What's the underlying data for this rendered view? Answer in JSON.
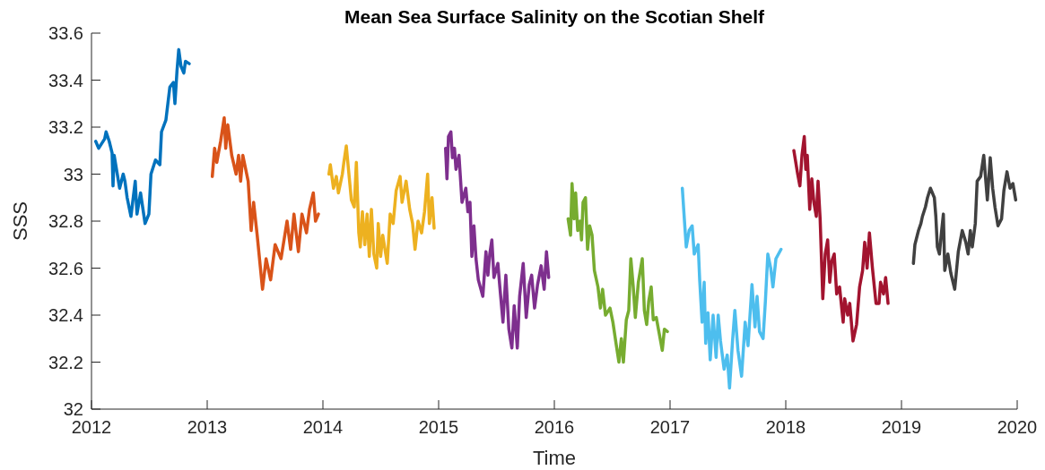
{
  "chart_data": {
    "type": "line",
    "title": "Mean Sea Surface Salinity on the Scotian Shelf",
    "xlabel": "Time",
    "ylabel": "SSS",
    "xlim": [
      2012,
      2020
    ],
    "ylim": [
      32,
      33.6
    ],
    "xticks": [
      2012,
      2013,
      2014,
      2015,
      2016,
      2017,
      2018,
      2019,
      2020
    ],
    "yticks": [
      32,
      32.2,
      32.4,
      32.6,
      32.8,
      33,
      33.2,
      33.4,
      33.6
    ],
    "series": [
      {
        "color": "#0072bd",
        "x": [
          2012.036,
          2012.062,
          2012.114,
          2012.126,
          2012.153,
          2012.178,
          2012.186,
          2012.196,
          2012.243,
          2012.274,
          2012.289,
          2012.308,
          2012.341,
          2012.378,
          2012.393,
          2012.424,
          2012.463,
          2012.496,
          2012.514,
          2012.553,
          2012.591,
          2012.605,
          2012.643,
          2012.677,
          2012.708,
          2012.721,
          2012.739,
          2012.754,
          2012.773,
          2012.798,
          2012.812,
          2012.845
        ],
        "values": [
          33.14,
          33.11,
          33.15,
          33.18,
          33.14,
          33.09,
          32.95,
          33.08,
          32.94,
          33.0,
          32.97,
          32.9,
          32.82,
          32.97,
          32.83,
          32.92,
          32.79,
          32.83,
          33.0,
          33.06,
          33.04,
          33.18,
          33.23,
          33.37,
          33.39,
          33.3,
          33.44,
          33.53,
          33.46,
          33.43,
          33.48,
          33.47
        ]
      },
      {
        "color": "#d95319",
        "x": [
          2013.044,
          2013.064,
          2013.083,
          2013.116,
          2013.147,
          2013.16,
          2013.178,
          2013.212,
          2013.25,
          2013.271,
          2013.289,
          2013.308,
          2013.354,
          2013.38,
          2013.401,
          2013.432,
          2013.478,
          2013.509,
          2013.548,
          2013.587,
          2013.638,
          2013.69,
          2013.721,
          2013.75,
          2013.788,
          2013.819,
          2013.858,
          2013.884,
          2013.917,
          2013.936,
          2013.961
        ],
        "values": [
          32.99,
          33.11,
          33.05,
          33.14,
          33.24,
          33.11,
          33.21,
          33.08,
          33.0,
          33.08,
          32.97,
          33.08,
          32.97,
          32.76,
          32.88,
          32.74,
          32.51,
          32.64,
          32.55,
          32.7,
          32.64,
          32.8,
          32.68,
          32.83,
          32.67,
          32.83,
          32.75,
          32.85,
          32.92,
          32.8,
          32.83
        ]
      },
      {
        "color": "#edb120",
        "x": [
          2014.052,
          2014.064,
          2014.091,
          2014.116,
          2014.134,
          2014.168,
          2014.181,
          2014.202,
          2014.219,
          2014.246,
          2014.271,
          2014.289,
          2014.31,
          2014.323,
          2014.341,
          2014.362,
          2014.382,
          2014.401,
          2014.419,
          2014.44,
          2014.465,
          2014.478,
          2014.499,
          2014.517,
          2014.543,
          2014.556,
          2014.581,
          2014.607,
          2014.633,
          2014.667,
          2014.684,
          2014.719,
          2014.75,
          2014.775,
          2014.796,
          2014.822,
          2014.853,
          2014.878,
          2014.905,
          2014.92,
          2014.943,
          2014.961
        ],
        "values": [
          33.0,
          33.04,
          32.94,
          32.99,
          32.92,
          33.0,
          33.05,
          33.12,
          33.03,
          32.89,
          32.86,
          33.05,
          32.75,
          32.69,
          32.84,
          32.7,
          32.83,
          32.65,
          32.85,
          32.66,
          32.6,
          32.79,
          32.65,
          32.74,
          32.66,
          32.62,
          32.83,
          32.79,
          32.93,
          32.99,
          32.88,
          32.97,
          32.85,
          32.79,
          32.68,
          32.8,
          32.75,
          32.84,
          33.0,
          32.79,
          32.9,
          32.77
        ]
      },
      {
        "color": "#7e2f8e",
        "x": [
          2015.06,
          2015.072,
          2015.085,
          2015.106,
          2015.119,
          2015.137,
          2015.15,
          2015.176,
          2015.202,
          2015.235,
          2015.253,
          2015.271,
          2015.287,
          2015.305,
          2015.323,
          2015.343,
          2015.382,
          2015.409,
          2015.426,
          2015.442,
          2015.46,
          2015.478,
          2015.512,
          2015.529,
          2015.556,
          2015.581,
          2015.607,
          2015.633,
          2015.653,
          2015.68,
          2015.7,
          2015.731,
          2015.757,
          2015.783,
          2015.804,
          2015.829,
          2015.855,
          2015.886,
          2015.912,
          2015.932,
          2015.951
        ],
        "values": [
          33.11,
          32.98,
          33.16,
          33.18,
          33.07,
          33.11,
          33.02,
          33.08,
          32.88,
          32.94,
          32.84,
          32.88,
          32.65,
          32.78,
          32.64,
          32.55,
          32.48,
          32.67,
          32.57,
          32.66,
          32.72,
          32.56,
          32.62,
          32.52,
          32.37,
          32.57,
          32.34,
          32.26,
          32.44,
          32.26,
          32.48,
          32.62,
          32.39,
          32.53,
          32.57,
          32.43,
          32.53,
          32.61,
          32.51,
          32.67,
          32.56
        ]
      },
      {
        "color": "#77ac30",
        "x": [
          2016.119,
          2016.14,
          2016.153,
          2016.171,
          2016.184,
          2016.202,
          2016.222,
          2016.235,
          2016.248,
          2016.269,
          2016.287,
          2016.305,
          2016.326,
          2016.346,
          2016.377,
          2016.398,
          2016.417,
          2016.442,
          2016.481,
          2016.506,
          2016.533,
          2016.558,
          2016.579,
          2016.597,
          2016.622,
          2016.643,
          2016.661,
          2016.682,
          2016.7,
          2016.726,
          2016.76,
          2016.778,
          2016.798,
          2016.816,
          2016.837,
          2016.855,
          2016.881,
          2016.907,
          2016.933,
          2016.951,
          2016.977
        ],
        "values": [
          32.81,
          32.74,
          32.96,
          32.81,
          32.92,
          32.76,
          32.8,
          32.72,
          32.88,
          32.9,
          32.68,
          32.78,
          32.74,
          32.59,
          32.52,
          32.43,
          32.51,
          32.4,
          32.43,
          32.37,
          32.28,
          32.2,
          32.3,
          32.2,
          32.38,
          32.42,
          32.64,
          32.52,
          32.39,
          32.54,
          32.64,
          32.42,
          32.36,
          32.46,
          32.52,
          32.38,
          32.39,
          32.32,
          32.25,
          32.34,
          32.33
        ]
      },
      {
        "color": "#4dbeee",
        "x": [
          2017.106,
          2017.126,
          2017.14,
          2017.165,
          2017.191,
          2017.209,
          2017.243,
          2017.256,
          2017.277,
          2017.295,
          2017.308,
          2017.328,
          2017.347,
          2017.372,
          2017.398,
          2017.416,
          2017.436,
          2017.467,
          2017.494,
          2017.514,
          2017.54,
          2017.56,
          2017.587,
          2017.618,
          2017.649,
          2017.674,
          2017.708,
          2017.734,
          2017.752,
          2017.773,
          2017.804,
          2017.824,
          2017.845,
          2017.87,
          2017.889,
          2017.915,
          2017.959
        ],
        "values": [
          32.94,
          32.79,
          32.69,
          32.76,
          32.78,
          32.66,
          32.7,
          32.55,
          32.37,
          32.54,
          32.28,
          32.41,
          32.21,
          32.4,
          32.22,
          32.4,
          32.29,
          32.17,
          32.23,
          32.09,
          32.29,
          32.42,
          32.25,
          32.14,
          32.37,
          32.27,
          32.53,
          32.35,
          32.48,
          32.33,
          32.3,
          32.46,
          32.66,
          32.6,
          32.52,
          32.64,
          32.68
        ]
      },
      {
        "color": "#a2142f",
        "x": [
          2018.07,
          2018.103,
          2018.122,
          2018.14,
          2018.16,
          2018.173,
          2018.186,
          2018.207,
          2018.225,
          2018.243,
          2018.264,
          2018.279,
          2018.297,
          2018.32,
          2018.341,
          2018.362,
          2018.38,
          2018.398,
          2018.419,
          2018.44,
          2018.465,
          2018.496,
          2018.509,
          2018.535,
          2018.553,
          2018.581,
          2018.612,
          2018.638,
          2018.664,
          2018.682,
          2018.703,
          2018.723,
          2018.749,
          2018.78,
          2018.806,
          2018.819,
          2018.845,
          2018.863,
          2018.884
        ],
        "values": [
          33.1,
          33.0,
          32.95,
          33.08,
          33.16,
          33.02,
          33.08,
          32.85,
          32.98,
          32.88,
          32.82,
          32.97,
          32.81,
          32.47,
          32.66,
          32.72,
          32.54,
          32.63,
          32.66,
          32.49,
          32.52,
          32.37,
          32.47,
          32.4,
          32.45,
          32.29,
          32.36,
          32.52,
          32.59,
          32.71,
          32.6,
          32.75,
          32.6,
          32.45,
          32.45,
          32.54,
          32.49,
          32.56,
          32.45
        ]
      },
      {
        "color": "#404040",
        "x": [
          2019.103,
          2019.116,
          2019.147,
          2019.168,
          2019.181,
          2019.207,
          2019.225,
          2019.25,
          2019.284,
          2019.297,
          2019.31,
          2019.328,
          2019.343,
          2019.362,
          2019.374,
          2019.401,
          2019.426,
          2019.46,
          2019.491,
          2019.525,
          2019.556,
          2019.576,
          2019.595,
          2019.612,
          2019.638,
          2019.654,
          2019.684,
          2019.711,
          2019.742,
          2019.767,
          2019.788,
          2019.808,
          2019.834,
          2019.865,
          2019.885,
          2019.912,
          2019.938,
          2019.963,
          2019.987
        ],
        "values": [
          32.62,
          32.7,
          32.76,
          32.79,
          32.82,
          32.86,
          32.9,
          32.94,
          32.9,
          32.82,
          32.69,
          32.66,
          32.74,
          32.83,
          32.59,
          32.66,
          32.58,
          32.51,
          32.67,
          32.76,
          32.71,
          32.66,
          32.76,
          32.69,
          32.79,
          32.97,
          32.99,
          33.08,
          32.89,
          33.07,
          32.94,
          32.86,
          32.78,
          32.81,
          32.93,
          33.01,
          32.94,
          32.96,
          32.89
        ]
      }
    ]
  }
}
